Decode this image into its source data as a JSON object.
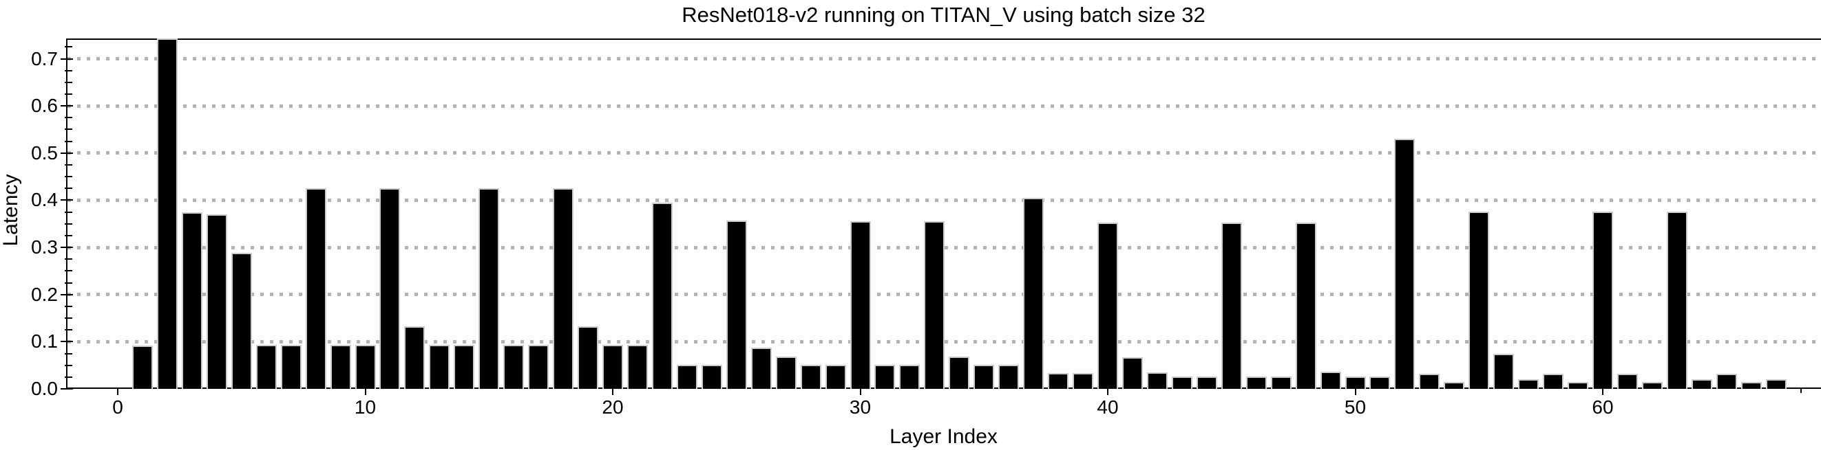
{
  "title": "ResNet018-v2 running on TITAN_V using batch size 32",
  "chart_data": {
    "type": "bar",
    "title": "ResNet018-v2 running on TITAN_V using batch size 32",
    "xlabel": "Layer Index",
    "ylabel": "Latency",
    "x": [
      1,
      2,
      3,
      4,
      5,
      6,
      7,
      8,
      9,
      10,
      11,
      12,
      13,
      14,
      15,
      16,
      17,
      18,
      19,
      20,
      21,
      22,
      23,
      24,
      25,
      26,
      27,
      28,
      29,
      30,
      31,
      32,
      33,
      34,
      35,
      36,
      37,
      38,
      39,
      40,
      41,
      42,
      43,
      44,
      45,
      46,
      47,
      48,
      49,
      50,
      51,
      52,
      53,
      54,
      55,
      56,
      57,
      58,
      59,
      60,
      61,
      62,
      63,
      64,
      65,
      66,
      67
    ],
    "values": [
      0.092,
      0.745,
      0.375,
      0.37,
      0.289,
      0.093,
      0.093,
      0.425,
      0.093,
      0.093,
      0.425,
      0.133,
      0.093,
      0.093,
      0.425,
      0.093,
      0.093,
      0.425,
      0.133,
      0.093,
      0.093,
      0.395,
      0.051,
      0.051,
      0.357,
      0.088,
      0.069,
      0.051,
      0.051,
      0.356,
      0.051,
      0.051,
      0.356,
      0.069,
      0.051,
      0.051,
      0.405,
      0.033,
      0.033,
      0.352,
      0.067,
      0.035,
      0.026,
      0.026,
      0.352,
      0.026,
      0.026,
      0.352,
      0.037,
      0.026,
      0.026,
      0.53,
      0.032,
      0.015,
      0.376,
      0.074,
      0.02,
      0.032,
      0.015,
      0.376,
      0.032,
      0.015,
      0.376,
      0.021,
      0.032,
      0.015,
      0.02
    ],
    "xticks": [
      0,
      10,
      20,
      30,
      40,
      50,
      60
    ],
    "xtick_minor": 68,
    "yticks": [
      0.0,
      0.1,
      0.2,
      0.3,
      0.4,
      0.5,
      0.6,
      0.7
    ],
    "ytick_minor_step": 0.025,
    "ylim": [
      0,
      0.743
    ],
    "note_clipped_bar": "bar at layer index 2 is clipped by the top frame",
    "grid": "horizontal-dotted",
    "legend_position": "none",
    "bar_color": "#000000",
    "bar_edge_color": "#cccccc",
    "grid_color": "#b3b3b3",
    "frame_color": "#000000"
  }
}
